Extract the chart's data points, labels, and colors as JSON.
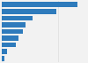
{
  "values": [
    270,
    195,
    110,
    85,
    75,
    60,
    50,
    18,
    10
  ],
  "bar_color": "#2e7bbc",
  "background_color": "#f2f2f2",
  "plot_bg_color": "#ffffff",
  "grid_color": "#dddddd",
  "xlim": [
    0,
    300
  ],
  "figsize": [
    1.0,
    0.71
  ],
  "dpi": 100,
  "bar_height": 0.75
}
